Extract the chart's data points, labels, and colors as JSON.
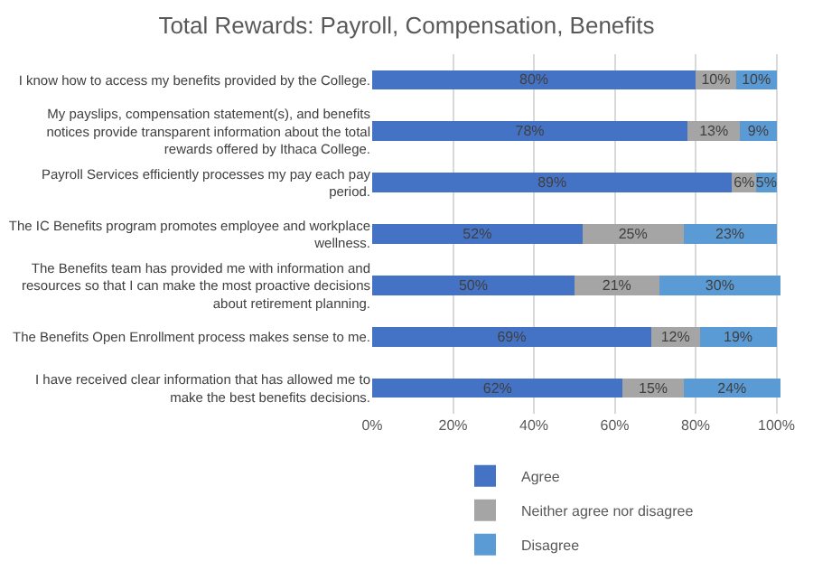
{
  "chart_data": {
    "type": "bar",
    "orientation": "horizontal",
    "stacked": true,
    "title": "Total Rewards: Payroll, Compensation, Benefits",
    "categories": [
      "I know how to access my benefits provided by the College.",
      "My payslips, compensation statement(s), and benefits notices provide transparent information about the total rewards offered by Ithaca College.",
      "Payroll Services efficiently processes my pay each pay period.",
      "The IC Benefits program promotes employee and workplace wellness.",
      "The Benefits team has provided me with information and resources so that I can make the most proactive decisions about retirement planning.",
      "The Benefits Open Enrollment process makes sense to me.",
      "I have received clear information that has allowed me to make the best benefits decisions."
    ],
    "series": [
      {
        "name": "Agree",
        "color": "#4472c4",
        "values": [
          80,
          78,
          89,
          52,
          50,
          69,
          62
        ],
        "value_labels": [
          "80%",
          "78%",
          "89%",
          "52%",
          "50%",
          "69%",
          "62%"
        ]
      },
      {
        "name": "Neither agree nor disagree",
        "color": "#a5a5a5",
        "values": [
          10,
          13,
          6,
          25,
          21,
          12,
          15
        ],
        "value_labels": [
          "10%",
          "13%",
          "6%",
          "25%",
          "21%",
          "12%",
          "15%"
        ]
      },
      {
        "name": "Disagree",
        "color": "#5b9bd5",
        "values": [
          10,
          9,
          5,
          23,
          30,
          19,
          24
        ],
        "value_labels": [
          "10%",
          "9%",
          "5%",
          "23%",
          "30%",
          "19%",
          "24%"
        ]
      }
    ],
    "xlim": [
      0,
      101
    ],
    "xticks": [
      {
        "value": 0,
        "label": "0%"
      },
      {
        "value": 20,
        "label": "20%"
      },
      {
        "value": 40,
        "label": "40%"
      },
      {
        "value": 60,
        "label": "60%"
      },
      {
        "value": 80,
        "label": "80%"
      },
      {
        "value": 100,
        "label": "100%"
      }
    ],
    "grid": "x",
    "legend": "bottom"
  }
}
